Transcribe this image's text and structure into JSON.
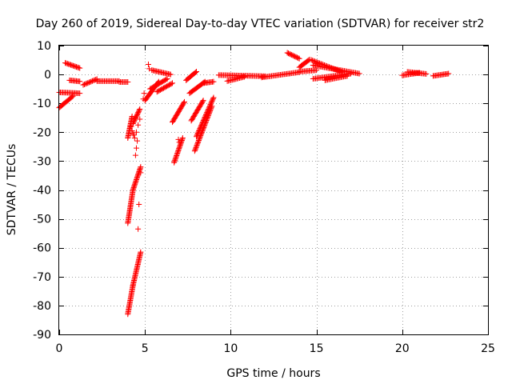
{
  "chart_data": {
    "type": "scatter",
    "title": "Day 260 of 2019, Sidereal Day-to-day VTEC variation (SDTVAR) for receiver str2",
    "xlabel": "GPS time / hours",
    "ylabel": "SDTVAR / TECUs",
    "xlim": [
      0,
      25
    ],
    "ylim": [
      -90,
      10
    ],
    "xticks": [
      "0",
      "5",
      "10",
      "15",
      "20",
      "25"
    ],
    "yticks": [
      "10",
      "0",
      "-10",
      "-20",
      "-30",
      "-40",
      "-50",
      "-60",
      "-70",
      "-80",
      "-90"
    ],
    "grid": true,
    "marker": "plus",
    "color": "#ff0000",
    "series": [
      {
        "name": "str2",
        "segments": [
          {
            "x": [
              0.0,
              0.8
            ],
            "y": [
              -11.5,
              -7.5
            ]
          },
          {
            "x": [
              0.0,
              1.2
            ],
            "y": [
              -6.2,
              -6.5
            ]
          },
          {
            "x": [
              0.35,
              1.2
            ],
            "y": [
              4.0,
              2.2
            ]
          },
          {
            "x": [
              0.6,
              1.2
            ],
            "y": [
              -2.0,
              -2.4
            ]
          },
          {
            "x": [
              1.4,
              2.2
            ],
            "y": [
              -3.6,
              -1.6
            ]
          },
          {
            "x": [
              2.2,
              3.5
            ],
            "y": [
              -2.3,
              -2.3
            ]
          },
          {
            "x": [
              3.5,
              4.0
            ],
            "y": [
              -2.6,
              -2.6
            ]
          },
          {
            "x": [
              4.0,
              4.25
            ],
            "y": [
              -22.0,
              -14.5
            ]
          },
          {
            "x": [
              4.3,
              4.7
            ],
            "y": [
              -17.0,
              -12.0
            ]
          },
          {
            "x": [
              4.0,
              4.3
            ],
            "y": [
              -51.5,
              -40.0
            ]
          },
          {
            "x": [
              4.3,
              4.75
            ],
            "y": [
              -40.0,
              -32.0
            ]
          },
          {
            "x": [
              4.0,
              4.3
            ],
            "y": [
              -83.0,
              -73.0
            ]
          },
          {
            "x": [
              4.3,
              4.75
            ],
            "y": [
              -73.0,
              -61.5
            ]
          },
          {
            "x": [
              5.0,
              5.8
            ],
            "y": [
              -9.0,
              -2.5
            ]
          },
          {
            "x": [
              5.3,
              6.3
            ],
            "y": [
              -5.0,
              -1.5
            ]
          },
          {
            "x": [
              5.4,
              6.5
            ],
            "y": [
              1.5,
              0.0
            ]
          },
          {
            "x": [
              5.7,
              6.6
            ],
            "y": [
              -6.0,
              -3.0
            ]
          },
          {
            "x": [
              6.6,
              7.3
            ],
            "y": [
              -16.5,
              -9.5
            ]
          },
          {
            "x": [
              6.7,
              7.2
            ],
            "y": [
              -30.5,
              -22.0
            ]
          },
          {
            "x": [
              7.4,
              8.0
            ],
            "y": [
              -2.0,
              1.0
            ]
          },
          {
            "x": [
              7.6,
              8.5
            ],
            "y": [
              -6.5,
              -2.5
            ]
          },
          {
            "x": [
              7.7,
              8.4
            ],
            "y": [
              -16.0,
              -9.0
            ]
          },
          {
            "x": [
              7.9,
              8.9
            ],
            "y": [
              -26.5,
              -11.0
            ]
          },
          {
            "x": [
              8.0,
              9.0
            ],
            "y": [
              -21.5,
              -8.0
            ]
          },
          {
            "x": [
              8.4,
              9.0
            ],
            "y": [
              -3.0,
              -2.5
            ]
          },
          {
            "x": [
              9.3,
              12.0
            ],
            "y": [
              -0.2,
              -0.6
            ]
          },
          {
            "x": [
              9.8,
              10.8
            ],
            "y": [
              -2.3,
              -0.8
            ]
          },
          {
            "x": [
              11.8,
              14.0
            ],
            "y": [
              -1.0,
              0.8
            ]
          },
          {
            "x": [
              13.3,
              14.0
            ],
            "y": [
              7.5,
              5.5
            ]
          },
          {
            "x": [
              14.0,
              15.0
            ],
            "y": [
              1.0,
              1.5
            ]
          },
          {
            "x": [
              14.0,
              14.6
            ],
            "y": [
              2.5,
              5.2
            ]
          },
          {
            "x": [
              14.7,
              16.5
            ],
            "y": [
              5.0,
              0.8
            ]
          },
          {
            "x": [
              14.8,
              17.5
            ],
            "y": [
              3.2,
              0.3
            ]
          },
          {
            "x": [
              14.8,
              17.0
            ],
            "y": [
              -1.5,
              0.3
            ]
          },
          {
            "x": [
              15.5,
              16.8
            ],
            "y": [
              -2.0,
              -0.5
            ]
          },
          {
            "x": [
              20.0,
              21.0
            ],
            "y": [
              -0.3,
              0.6
            ]
          },
          {
            "x": [
              20.3,
              21.4
            ],
            "y": [
              0.9,
              0.2
            ]
          },
          {
            "x": [
              21.8,
              22.7
            ],
            "y": [
              -0.5,
              0.3
            ]
          }
        ]
      }
    ],
    "outliers": {
      "x": [
        4.2,
        4.25,
        4.3,
        4.35,
        4.4,
        4.5,
        4.55,
        4.6,
        4.7,
        4.45,
        4.5,
        4.6,
        4.65,
        4.75,
        5.2,
        5.25,
        6.95,
        7.0,
        4.9,
        4.95
      ],
      "y": [
        -18.0,
        -19.5,
        -20.5,
        -21.0,
        -22.0,
        -20.0,
        -23.0,
        -17.5,
        -15.5,
        -28.0,
        -25.5,
        -53.5,
        -45.0,
        -34.0,
        3.5,
        2.0,
        -22.5,
        -23.5,
        -8.5,
        -6.5
      ]
    }
  }
}
